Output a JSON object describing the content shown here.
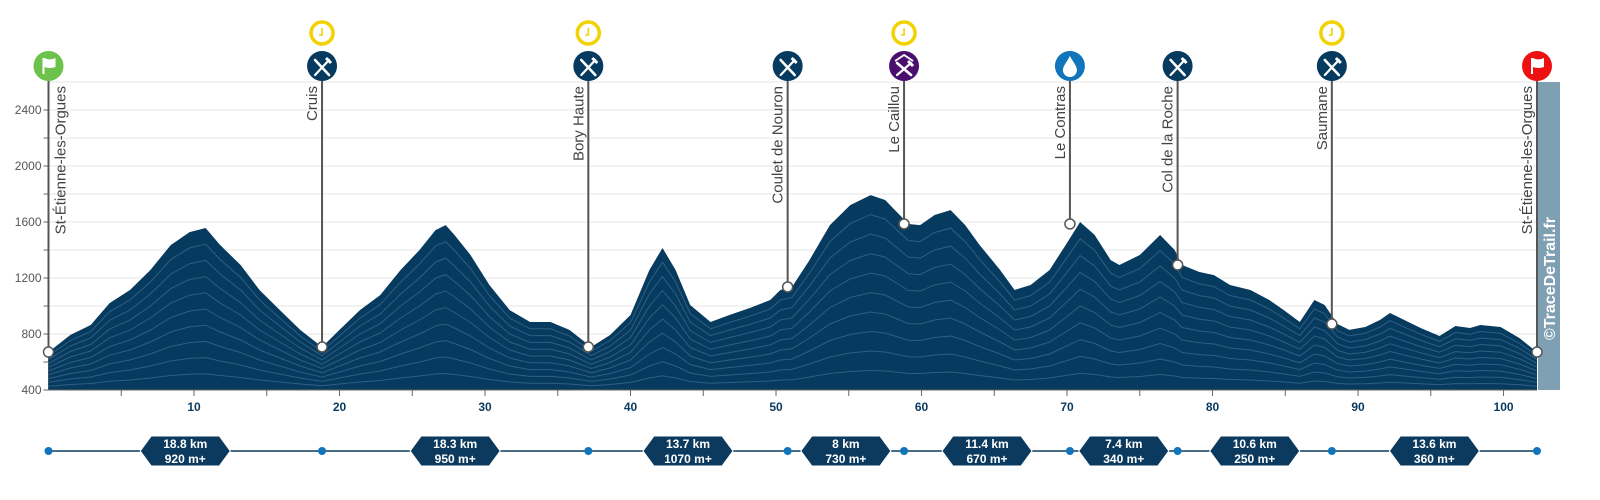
{
  "chart_data": {
    "type": "area",
    "title": "",
    "xlabel": "",
    "ylabel": "",
    "xlim": [
      0,
      102.3
    ],
    "ylim": [
      400,
      2600
    ],
    "x_ticks": [
      10,
      20,
      30,
      40,
      50,
      60,
      70,
      80,
      90,
      100
    ],
    "y_ticks": [
      400,
      800,
      1200,
      1600,
      2000,
      2400
    ],
    "grid": true,
    "colors": {
      "fill": "#063a5e",
      "contour": "#2f5f82",
      "grid": "#e6e6e6",
      "credit_bar": "#7f9fb3"
    },
    "profile": {
      "km": [
        0,
        1.5,
        2.9,
        4.2,
        5.6,
        7.0,
        8.4,
        9.7,
        10.8,
        11.8,
        13.2,
        14.5,
        15.9,
        17.3,
        18.8,
        20.0,
        21.4,
        22.8,
        24.2,
        25.5,
        26.6,
        27.3,
        27.9,
        29.0,
        30.3,
        31.7,
        33.1,
        34.5,
        35.8,
        37.3,
        38.6,
        40.0,
        41.3,
        42.2,
        43.1,
        44.1,
        45.5,
        46.8,
        48.2,
        49.6,
        50.3,
        51.1,
        52.3,
        53.7,
        55.1,
        56.5,
        57.5,
        58.5,
        59.1,
        59.9,
        60.9,
        62.0,
        63.0,
        64.0,
        65.4,
        66.4,
        67.5,
        68.8,
        69.9,
        70.9,
        71.9,
        73.0,
        73.6,
        75.0,
        76.4,
        77.4,
        77.9,
        79.1,
        80.1,
        81.2,
        82.6,
        83.9,
        84.9,
        86.0,
        87.0,
        87.7,
        88.6,
        89.4,
        90.5,
        91.5,
        92.2,
        92.9,
        94.3,
        95.6,
        96.7,
        97.7,
        98.4,
        99.8,
        101.1,
        102.3
      ],
      "elevation_m": [
        671,
        793,
        864,
        1021,
        1114,
        1257,
        1435,
        1528,
        1557,
        1435,
        1293,
        1114,
        971,
        829,
        707,
        829,
        971,
        1078,
        1257,
        1400,
        1542,
        1578,
        1507,
        1364,
        1150,
        971,
        886,
        886,
        829,
        707,
        793,
        936,
        1257,
        1414,
        1257,
        1007,
        886,
        936,
        986,
        1043,
        1114,
        1136,
        1328,
        1578,
        1721,
        1792,
        1757,
        1650,
        1586,
        1578,
        1650,
        1685,
        1578,
        1435,
        1257,
        1114,
        1150,
        1257,
        1435,
        1600,
        1507,
        1328,
        1293,
        1364,
        1507,
        1400,
        1293,
        1243,
        1221,
        1150,
        1114,
        1043,
        971,
        886,
        1043,
        1007,
        871,
        829,
        850,
        900,
        950,
        914,
        843,
        786,
        857,
        843,
        864,
        850,
        771,
        671
      ]
    },
    "waypoints": [
      {
        "name": "St-Étienne-les-Orgues",
        "km": 0,
        "elevation_m": 671,
        "icon": "start-flag-icon",
        "color": "#6cc24a",
        "time_barrier": false
      },
      {
        "name": "Cruis",
        "km": 18.8,
        "elevation_m": 707,
        "icon": "food-icon",
        "color": "#063a5e",
        "time_barrier": true
      },
      {
        "name": "Bory Haute",
        "km": 37.1,
        "elevation_m": 707,
        "icon": "food-icon",
        "color": "#063a5e",
        "time_barrier": true
      },
      {
        "name": "Coulet de Nouron",
        "km": 50.8,
        "elevation_m": 1136,
        "icon": "food-icon",
        "color": "#063a5e",
        "time_barrier": false
      },
      {
        "name": "Le Caillou",
        "km": 58.8,
        "elevation_m": 1586,
        "icon": "shelter-food-icon",
        "color": "#4a0f6e",
        "time_barrier": true
      },
      {
        "name": "Le Contras",
        "km": 70.2,
        "elevation_m": 1586,
        "icon": "water-drop-icon",
        "color": "#1175bb",
        "time_barrier": false
      },
      {
        "name": "Col de la Roche",
        "km": 77.6,
        "elevation_m": 1293,
        "icon": "food-icon",
        "color": "#063a5e",
        "time_barrier": false
      },
      {
        "name": "Saumane",
        "km": 88.2,
        "elevation_m": 871,
        "icon": "food-icon",
        "color": "#063a5e",
        "time_barrier": true
      },
      {
        "name": "St-Étienne-les-Orgues",
        "km": 102.3,
        "elevation_m": 671,
        "icon": "finish-flag-icon",
        "color": "#ee1111",
        "time_barrier": false
      }
    ],
    "segments": [
      {
        "distance": "18.8 km",
        "gain": "920 m+"
      },
      {
        "distance": "18.3 km",
        "gain": "950 m+"
      },
      {
        "distance": "13.7 km",
        "gain": "1070 m+"
      },
      {
        "distance": "8 km",
        "gain": "730 m+"
      },
      {
        "distance": "11.4 km",
        "gain": "670 m+"
      },
      {
        "distance": "7.4 km",
        "gain": "340 m+"
      },
      {
        "distance": "10.6 km",
        "gain": "250 m+"
      },
      {
        "distance": "13.6 km",
        "gain": "360 m+"
      }
    ],
    "credit": "©TraceDeTrail.fr"
  }
}
